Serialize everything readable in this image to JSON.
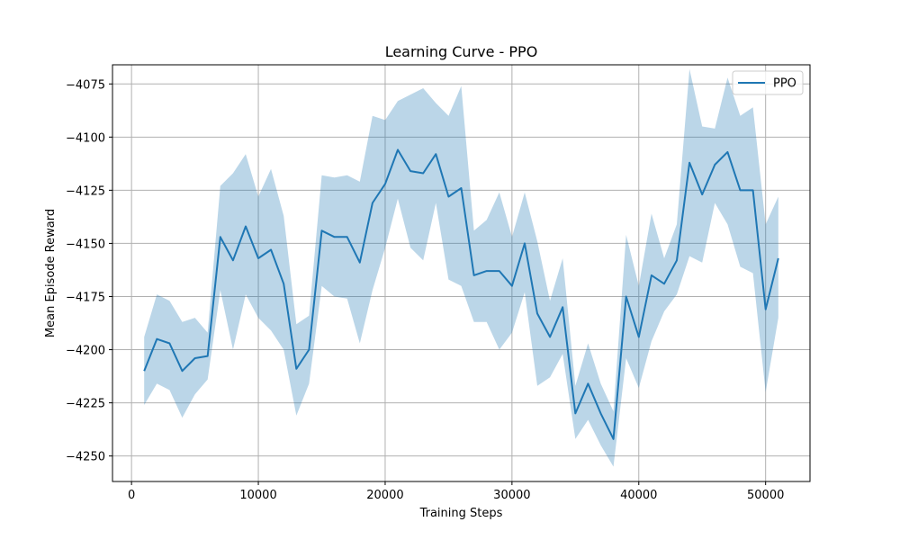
{
  "chart_data": {
    "type": "line",
    "title": "Learning Curve - PPO",
    "xlabel": "Training Steps",
    "ylabel": "Mean Episode Reward",
    "xlim": [
      -1500,
      53500
    ],
    "ylim": [
      -4262,
      -4066
    ],
    "xticks": [
      0,
      10000,
      20000,
      30000,
      40000,
      50000
    ],
    "yticks": [
      -4250,
      -4225,
      -4200,
      -4175,
      -4150,
      -4125,
      -4100,
      -4075
    ],
    "grid": true,
    "legend_position": "top-right",
    "colors": {
      "line": "#1f77b4",
      "band": "#1f77b4"
    },
    "series": [
      {
        "name": "PPO",
        "x": [
          1000,
          2000,
          3000,
          4000,
          5000,
          6000,
          7000,
          8000,
          9000,
          10000,
          11000,
          12000,
          13000,
          14000,
          15000,
          16000,
          17000,
          18000,
          19000,
          20000,
          21000,
          22000,
          23000,
          24000,
          25000,
          26000,
          27000,
          28000,
          29000,
          30000,
          31000,
          32000,
          33000,
          34000,
          35000,
          36000,
          37000,
          38000,
          39000,
          40000,
          41000,
          42000,
          43000,
          44000,
          45000,
          46000,
          47000,
          48000,
          49000,
          50000,
          51000
        ],
        "y": [
          -4210,
          -4195,
          -4197,
          -4210,
          -4204,
          -4203,
          -4147,
          -4158,
          -4142,
          -4157,
          -4153,
          -4169,
          -4209,
          -4200,
          -4144,
          -4147,
          -4147,
          -4159,
          -4131,
          -4122,
          -4106,
          -4116,
          -4117,
          -4108,
          -4128,
          -4124,
          -4165,
          -4163,
          -4163,
          -4170,
          -4150,
          -4183,
          -4194,
          -4180,
          -4230,
          -4216,
          -4230,
          -4242,
          -4175,
          -4194,
          -4165,
          -4169,
          -4158,
          -4112,
          -4127,
          -4113,
          -4107,
          -4125,
          -4125,
          -4181,
          -4157
        ],
        "lower": [
          -4226,
          -4216,
          -4219,
          -4232,
          -4221,
          -4214,
          -4172,
          -4200,
          -4174,
          -4185,
          -4191,
          -4200,
          -4231,
          -4216,
          -4170,
          -4175,
          -4176,
          -4197,
          -4172,
          -4152,
          -4129,
          -4152,
          -4158,
          -4131,
          -4167,
          -4170,
          -4187,
          -4187,
          -4200,
          -4192,
          -4173,
          -4217,
          -4213,
          -4202,
          -4242,
          -4233,
          -4245,
          -4255,
          -4204,
          -4218,
          -4196,
          -4182,
          -4174,
          -4156,
          -4159,
          -4131,
          -4141,
          -4161,
          -4164,
          -4220,
          -4185
        ],
        "upper": [
          -4194,
          -4174,
          -4177,
          -4187,
          -4185,
          -4192,
          -4123,
          -4117,
          -4108,
          -4128,
          -4115,
          -4137,
          -4188,
          -4184,
          -4118,
          -4119,
          -4118,
          -4121,
          -4090,
          -4092,
          -4083,
          -4080,
          -4077,
          -4084,
          -4090,
          -4076,
          -4144,
          -4139,
          -4126,
          -4147,
          -4126,
          -4149,
          -4177,
          -4157,
          -4217,
          -4197,
          -4216,
          -4229,
          -4146,
          -4170,
          -4136,
          -4157,
          -4141,
          -4068,
          -4095,
          -4096,
          -4072,
          -4090,
          -4086,
          -4141,
          -4128
        ]
      }
    ]
  }
}
